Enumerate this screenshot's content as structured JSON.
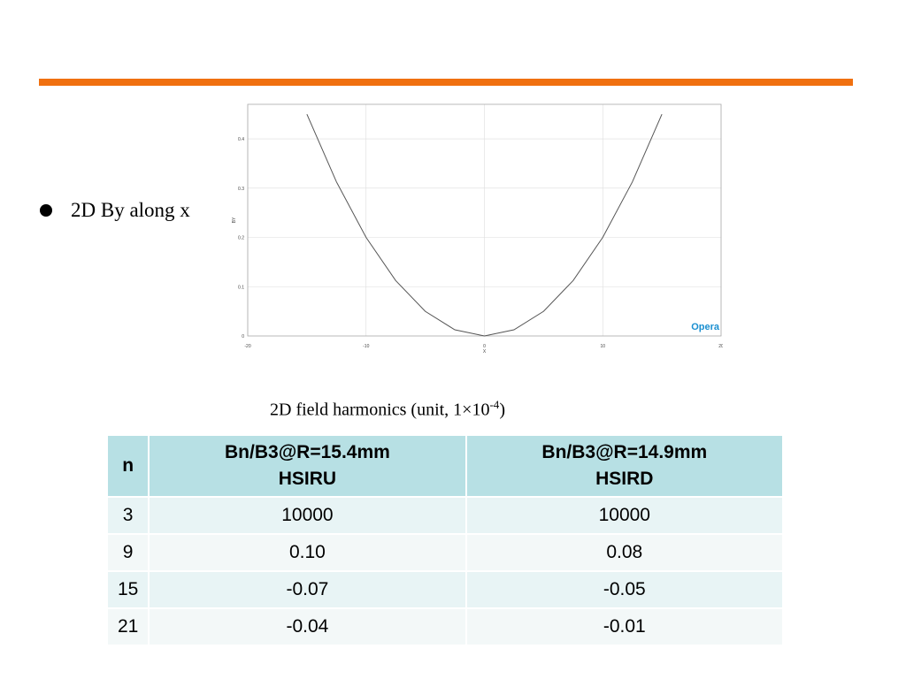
{
  "bullet": "2D By along x",
  "chart_data": {
    "type": "line",
    "xlabel": "X",
    "ylabel": "BY",
    "logo": "Opera",
    "x": [
      -15,
      -12.5,
      -10,
      -7.5,
      -5,
      -2.5,
      0,
      2.5,
      5,
      7.5,
      10,
      12.5,
      15
    ],
    "series": [
      {
        "name": "BY",
        "color": "#555555",
        "values": [
          0.45,
          0.3125,
          0.2,
          0.1125,
          0.05,
          0.0125,
          0,
          0.0125,
          0.05,
          0.1125,
          0.2,
          0.3125,
          0.45
        ]
      }
    ],
    "xlim": [
      -20,
      20
    ],
    "xticks": [
      -20,
      -10,
      0,
      10,
      20
    ],
    "ylim": [
      0,
      0.47
    ],
    "yticks": [
      0,
      0.1,
      0.2,
      0.3,
      0.4
    ],
    "grid": true
  },
  "caption": {
    "text": "2D field harmonics (unit, 1×10",
    "sup": "-4",
    "end": ")"
  },
  "table": {
    "header": [
      [
        "n"
      ],
      [
        "Bn/B3@R=15.4mm",
        "HSIRU"
      ],
      [
        "Bn/B3@R=14.9mm",
        "HSIRD"
      ]
    ],
    "rows": [
      [
        "3",
        "10000",
        "10000"
      ],
      [
        "9",
        "0.10",
        "0.08"
      ],
      [
        "15",
        "-0.07",
        "-0.05"
      ],
      [
        "21",
        "-0.04",
        "-0.01"
      ]
    ]
  }
}
